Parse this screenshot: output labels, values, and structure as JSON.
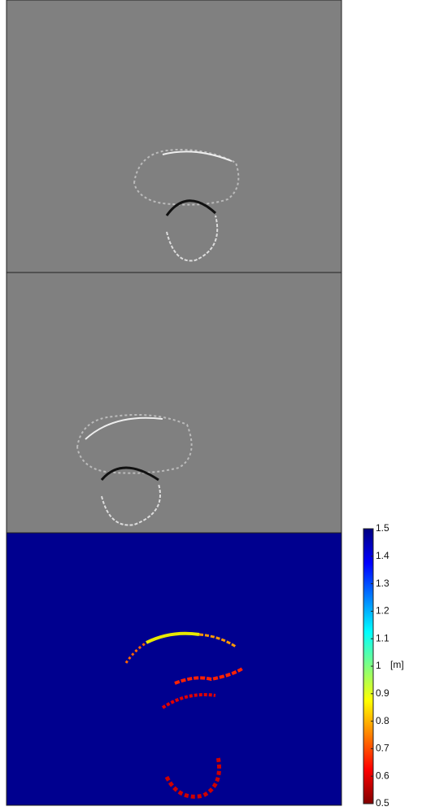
{
  "colorbar": {
    "label": "[m]",
    "lim": [
      0.5,
      1.5
    ],
    "ticks": [
      0.5,
      0.6,
      0.7,
      0.8,
      0.9,
      1,
      1.1,
      1.2,
      1.3,
      1.4,
      1.5
    ]
  }
}
